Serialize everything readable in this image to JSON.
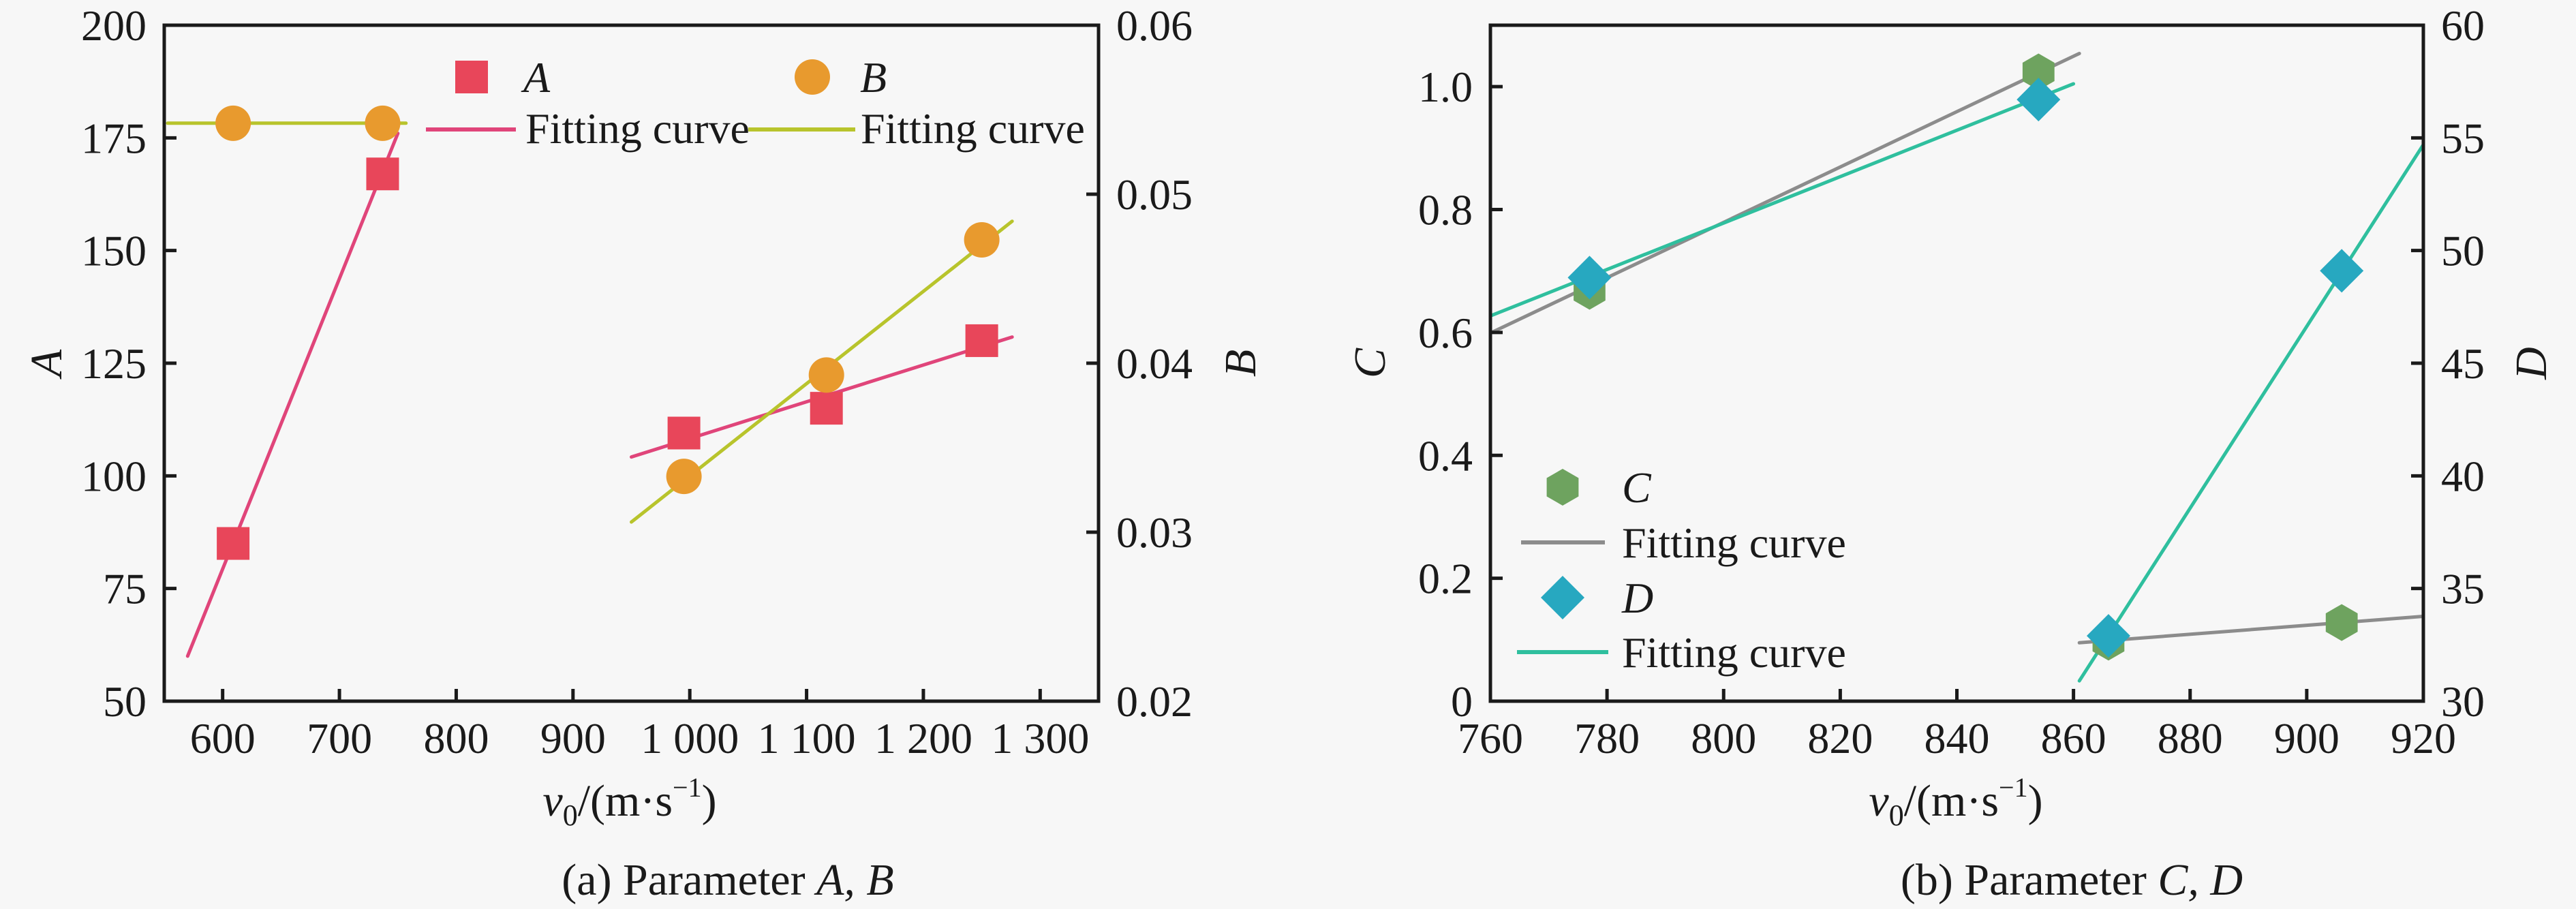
{
  "figure": {
    "panels": [
      "a",
      "b"
    ]
  },
  "chart_data": [
    {
      "id": "a",
      "type": "scatter",
      "caption": "(a) Parameter ",
      "caption_italic": "A, B",
      "xlabel_main": "v",
      "xlabel_sub": "0",
      "xlabel_unit": "/(m·s",
      "xlabel_sup": "−1",
      "xlabel_close": ")",
      "xlim": [
        550,
        1350
      ],
      "xticks": [
        600,
        700,
        800,
        900,
        1000,
        1100,
        1200,
        1300
      ],
      "xtick_labels": [
        "600",
        "700",
        "800",
        "900",
        "1 000",
        "1 100",
        "1 200",
        "1 300"
      ],
      "left_axis": {
        "label": "A",
        "ylim": [
          50,
          200
        ],
        "ticks": [
          50,
          75,
          100,
          125,
          150,
          175,
          200
        ],
        "tick_labels": [
          "50",
          "75",
          "100",
          "125",
          "150",
          "175",
          "200"
        ]
      },
      "right_axis": {
        "label": "B",
        "ylim": [
          0.02,
          0.06
        ],
        "ticks": [
          0.02,
          0.03,
          0.04,
          0.05,
          0.06
        ],
        "tick_labels": [
          "0.02",
          "0.03",
          "0.04",
          "0.05",
          "0.06"
        ]
      },
      "grid": false,
      "legend_position": "top",
      "series": [
        {
          "name": "A",
          "axis": "left",
          "marker": "square",
          "color": "#e8465a",
          "x": [
            609,
            737,
            995,
            1117,
            1250
          ],
          "y": [
            85,
            167,
            109.5,
            115,
            130
          ]
        },
        {
          "name": "B",
          "axis": "right",
          "marker": "circle",
          "color": "#e89a2e",
          "x": [
            609,
            737,
            995,
            1117,
            1250
          ],
          "y": [
            0.0542,
            0.0542,
            0.0333,
            0.0393,
            0.0473
          ]
        }
      ],
      "fits": [
        {
          "name": "Fitting curve",
          "of": "A",
          "axis": "left",
          "color": "#e0457a",
          "segments": [
            [
              [
                570,
                60
              ],
              [
                750,
                176
              ]
            ],
            [
              [
                950,
                104.2
              ],
              [
                1276,
                130.8
              ]
            ]
          ]
        },
        {
          "name": "Fitting curve",
          "of": "B",
          "axis": "right",
          "color": "#b8c42c",
          "segments": [
            [
              [
                553,
                0.0542
              ],
              [
                757,
                0.0542
              ]
            ],
            [
              [
                950,
                0.0306
              ],
              [
                1276,
                0.0484
              ]
            ]
          ]
        }
      ],
      "legend": [
        {
          "label": "A",
          "italic": true,
          "kind": "marker",
          "series": "A"
        },
        {
          "label": "B",
          "italic": true,
          "kind": "marker",
          "series": "B"
        },
        {
          "label": "Fitting curve",
          "italic": false,
          "kind": "line",
          "series": "A"
        },
        {
          "label": "Fitting curve",
          "italic": false,
          "kind": "line",
          "series": "B"
        }
      ]
    },
    {
      "id": "b",
      "type": "scatter",
      "caption": "(b) Parameter ",
      "caption_italic": "C, D",
      "xlabel_main": "v",
      "xlabel_sub": "0",
      "xlabel_unit": "/(m·s",
      "xlabel_sup": "−1",
      "xlabel_close": ")",
      "xlim": [
        760,
        920
      ],
      "xticks": [
        760,
        780,
        800,
        820,
        840,
        860,
        880,
        900,
        920
      ],
      "xtick_labels": [
        "760",
        "780",
        "800",
        "820",
        "840",
        "860",
        "880",
        "900",
        "920"
      ],
      "left_axis": {
        "label": "C",
        "ylim": [
          0,
          1.1
        ],
        "ticks": [
          0,
          0.2,
          0.4,
          0.6,
          0.8,
          1.0
        ],
        "tick_labels": [
          "0",
          "0.2",
          "0.4",
          "0.6",
          "0.8",
          "1.0"
        ]
      },
      "right_axis": {
        "label": "D",
        "ylim": [
          30,
          60
        ],
        "ticks": [
          30,
          35,
          40,
          45,
          50,
          55,
          60
        ],
        "tick_labels": [
          "30",
          "35",
          "40",
          "45",
          "50",
          "55",
          "60"
        ]
      },
      "grid": false,
      "legend_position": "bottom-left",
      "series": [
        {
          "name": "C",
          "axis": "left",
          "marker": "hexagon",
          "color": "#6ea35f",
          "x": [
            777,
            854,
            866,
            906
          ],
          "y": [
            0.667,
            1.024,
            0.096,
            0.128
          ]
        },
        {
          "name": "D",
          "axis": "right",
          "marker": "diamond",
          "color": "#27a8c0",
          "x": [
            777,
            854,
            866,
            906
          ],
          "y": [
            48.8,
            56.7,
            32.9,
            49.1
          ]
        }
      ],
      "fits": [
        {
          "name": "Fitting curve",
          "of": "C",
          "axis": "left",
          "color": "#8c8c8c",
          "segments": [
            [
              [
                760,
                0.599
              ],
              [
                861,
                1.054
              ]
            ],
            [
              [
                861,
                0.095
              ],
              [
                920,
                0.138
              ]
            ]
          ]
        },
        {
          "name": "Fitting curve",
          "of": "D",
          "axis": "right",
          "color": "#2fbf9e",
          "segments": [
            [
              [
                760,
                47.1
              ],
              [
                860,
                57.4
              ]
            ],
            [
              [
                861,
                30.9
              ],
              [
                920,
                54.7
              ]
            ]
          ]
        }
      ],
      "legend": [
        {
          "label": "C",
          "italic": true,
          "kind": "marker",
          "series": "C"
        },
        {
          "label": "Fitting curve",
          "italic": false,
          "kind": "line",
          "series": "C"
        },
        {
          "label": "D",
          "italic": true,
          "kind": "marker",
          "series": "D"
        },
        {
          "label": "Fitting curve",
          "italic": false,
          "kind": "line",
          "series": "D"
        }
      ]
    }
  ]
}
